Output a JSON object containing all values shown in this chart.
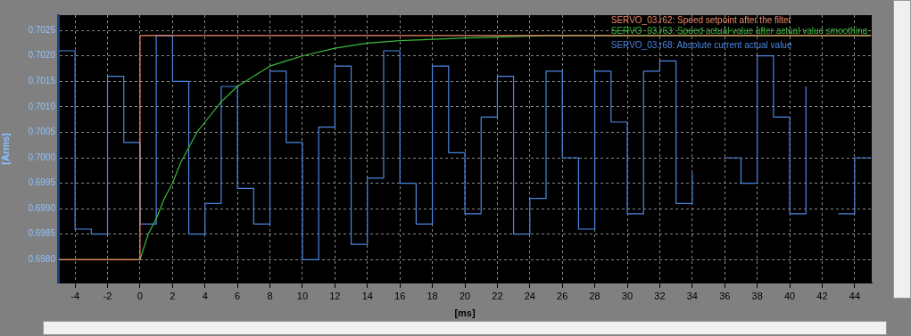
{
  "chart_data": {
    "type": "line",
    "xlabel": "[ms]",
    "ylabel": "[Arms]",
    "xlim": [
      -5.05,
      45.05
    ],
    "ylim": [
      0.69755,
      0.7028
    ],
    "xticks": [
      -4,
      -2,
      0,
      2,
      4,
      6,
      8,
      10,
      12,
      14,
      16,
      18,
      20,
      22,
      24,
      26,
      28,
      30,
      32,
      34,
      36,
      38,
      40,
      42,
      44
    ],
    "yticks": [
      {
        "value": 0.698,
        "label": "0.6980"
      },
      {
        "value": 0.6985,
        "label": "0.6985"
      },
      {
        "value": 0.699,
        "label": "0.6990"
      },
      {
        "value": 0.6995,
        "label": "0.6995"
      },
      {
        "value": 0.7,
        "label": "0.7000"
      },
      {
        "value": 0.7005,
        "label": "0.7005"
      },
      {
        "value": 0.701,
        "label": "0.7010"
      },
      {
        "value": 0.7015,
        "label": "0.7015"
      },
      {
        "value": 0.702,
        "label": "0.7020"
      },
      {
        "value": 0.7025,
        "label": "0.7025"
      }
    ],
    "grid": true,
    "legend": "top right",
    "series": [
      {
        "name": "SERVO_03.r62: Speed setpoint after the filter",
        "color": "#f08868",
        "type": "step",
        "x": [
          -5,
          0,
          45
        ],
        "values": [
          0.698,
          0.7024,
          0.7024
        ]
      },
      {
        "name": "SERVO_03.r63: Speed actual value after actual value smoothing",
        "color": "#3cb83c",
        "type": "line",
        "x": [
          -5,
          0,
          0.5,
          1,
          1.5,
          2,
          2.5,
          3,
          3.5,
          4,
          5,
          6,
          7,
          8,
          9,
          10,
          12,
          14,
          16,
          20,
          25,
          45
        ],
        "values": [
          0.698,
          0.698,
          0.6985,
          0.6988,
          0.6992,
          0.6995,
          0.6999,
          0.7002,
          0.7005,
          0.7007,
          0.7011,
          0.7014,
          0.7016,
          0.7018,
          0.7019,
          0.702,
          0.70215,
          0.70225,
          0.7023,
          0.70235,
          0.7024,
          0.7024
        ]
      },
      {
        "name": "SERVO_03.r68: Absolute current actual value",
        "color": "#4a86e0",
        "type": "step",
        "x": [
          -5,
          -4,
          -3,
          -2,
          -1,
          0,
          1,
          2,
          3,
          4,
          5,
          6,
          7,
          8,
          9,
          10,
          11,
          12,
          13,
          14,
          15,
          16,
          17,
          18,
          19,
          20,
          21,
          22,
          23,
          24,
          25,
          26,
          27,
          28,
          29,
          30,
          31,
          32,
          33,
          34,
          35,
          36,
          37,
          38,
          39,
          40,
          41,
          42,
          43,
          44,
          45
        ],
        "values": [
          0.7021,
          0.6986,
          0.6985,
          0.7016,
          0.7003,
          0.6987,
          0.7024,
          0.7015,
          0.6985,
          0.6991,
          0.7014,
          0.6994,
          0.6987,
          0.7017,
          0.7003,
          0.698,
          0.7006,
          0.7018,
          0.6983,
          0.6996,
          0.7021,
          0.6995,
          0.6987,
          0.7018,
          0.7001,
          0.6989,
          0.7008,
          0.7016,
          0.6985,
          0.6992,
          0.7017,
          0.7,
          0.6986,
          0.7017,
          0.7007,
          0.6989,
          0.7017,
          0.7019,
          0.6991,
          0.6997,
          null,
          0.7,
          0.6995,
          0.702,
          0.7008,
          0.6989,
          0.7014,
          null,
          0.6989,
          0.7,
          0.7
        ]
      }
    ]
  }
}
